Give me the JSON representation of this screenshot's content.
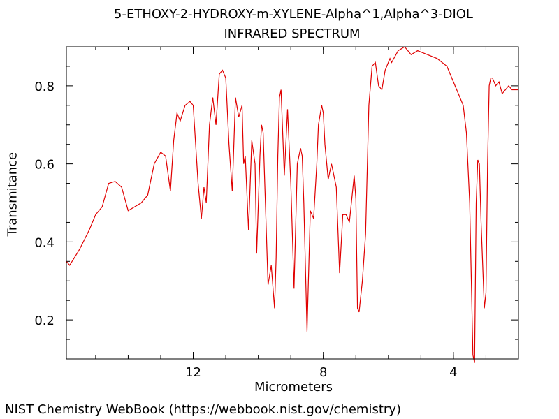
{
  "title_line1": "5-ETHOXY-2-HYDROXY-m-XYLENE-Alpha^1,Alpha^3-DIOL",
  "title_line2": "INFRARED SPECTRUM",
  "footer": "NIST Chemistry WebBook (https://webbook.nist.gov/chemistry)",
  "colors": {
    "line": "#e00000",
    "axis": "#000000",
    "background": "#ffffff"
  },
  "chart_data": {
    "type": "line",
    "title": "5-ETHOXY-2-HYDROXY-m-XYLENE-Alpha^1,Alpha^3-DIOL INFRARED SPECTRUM",
    "xlabel": "Micrometers",
    "ylabel": "Transmitance",
    "x_axis_reversed": true,
    "xlim": [
      15.9,
      2.0
    ],
    "ylim": [
      0.1,
      0.9
    ],
    "xticks_labeled": [
      12,
      8,
      4
    ],
    "yticks_labeled": [
      0.2,
      0.4,
      0.6,
      0.8
    ],
    "grid": false,
    "series": [
      {
        "color": "#e00000",
        "x": [
          15.9,
          15.8,
          15.5,
          15.2,
          15.0,
          14.8,
          14.6,
          14.4,
          14.2,
          14.0,
          13.8,
          13.6,
          13.4,
          13.2,
          13.0,
          12.85,
          12.7,
          12.6,
          12.5,
          12.4,
          12.25,
          12.1,
          12.0,
          11.85,
          11.75,
          11.67,
          11.6,
          11.5,
          11.4,
          11.3,
          11.2,
          11.1,
          11.0,
          10.9,
          10.8,
          10.7,
          10.6,
          10.5,
          10.45,
          10.4,
          10.3,
          10.2,
          10.1,
          10.05,
          9.95,
          9.9,
          9.85,
          9.8,
          9.7,
          9.6,
          9.5,
          9.45,
          9.4,
          9.35,
          9.3,
          9.2,
          9.1,
          9.0,
          8.9,
          8.8,
          8.7,
          8.65,
          8.6,
          8.5,
          8.4,
          8.3,
          8.2,
          8.15,
          8.05,
          8.0,
          7.95,
          7.85,
          7.75,
          7.6,
          7.5,
          7.4,
          7.3,
          7.2,
          7.1,
          7.05,
          7.0,
          6.95,
          6.9,
          6.8,
          6.7,
          6.6,
          6.5,
          6.4,
          6.3,
          6.2,
          6.1,
          6.0,
          5.95,
          5.9,
          5.7,
          5.5,
          5.3,
          5.1,
          4.8,
          4.5,
          4.2,
          3.9,
          3.7,
          3.6,
          3.5,
          3.4,
          3.35,
          3.3,
          3.25,
          3.2,
          3.15,
          3.1,
          3.05,
          3.0,
          2.95,
          2.9,
          2.85,
          2.8,
          2.7,
          2.6,
          2.5,
          2.3,
          2.2,
          2.1,
          2.0
        ],
        "y": [
          0.35,
          0.34,
          0.38,
          0.43,
          0.47,
          0.49,
          0.55,
          0.555,
          0.54,
          0.48,
          0.49,
          0.5,
          0.52,
          0.6,
          0.63,
          0.62,
          0.53,
          0.66,
          0.73,
          0.71,
          0.75,
          0.76,
          0.75,
          0.55,
          0.46,
          0.54,
          0.5,
          0.7,
          0.77,
          0.7,
          0.83,
          0.84,
          0.82,
          0.65,
          0.53,
          0.77,
          0.72,
          0.75,
          0.6,
          0.62,
          0.43,
          0.66,
          0.6,
          0.37,
          0.62,
          0.7,
          0.68,
          0.55,
          0.29,
          0.34,
          0.23,
          0.36,
          0.62,
          0.77,
          0.79,
          0.57,
          0.74,
          0.55,
          0.28,
          0.6,
          0.64,
          0.62,
          0.5,
          0.17,
          0.48,
          0.46,
          0.6,
          0.7,
          0.75,
          0.73,
          0.65,
          0.56,
          0.6,
          0.54,
          0.32,
          0.47,
          0.47,
          0.45,
          0.53,
          0.57,
          0.51,
          0.23,
          0.22,
          0.3,
          0.42,
          0.75,
          0.85,
          0.86,
          0.8,
          0.79,
          0.84,
          0.86,
          0.87,
          0.86,
          0.89,
          0.9,
          0.88,
          0.89,
          0.88,
          0.87,
          0.85,
          0.79,
          0.75,
          0.68,
          0.5,
          0.11,
          0.09,
          0.5,
          0.61,
          0.6,
          0.45,
          0.34,
          0.23,
          0.27,
          0.6,
          0.8,
          0.82,
          0.82,
          0.8,
          0.81,
          0.78,
          0.8,
          0.79,
          0.79,
          0.79
        ]
      }
    ]
  }
}
